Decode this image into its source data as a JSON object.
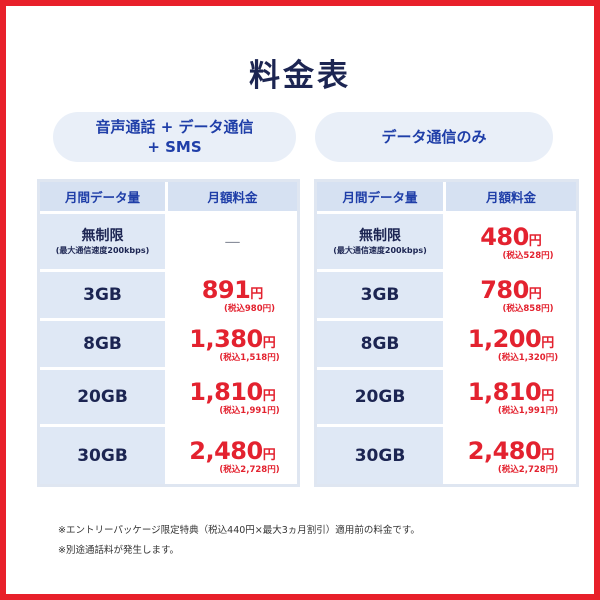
{
  "title": "料金表",
  "plans": {
    "left": {
      "line1": "音声通話 + データ通信",
      "line2": "+ SMS"
    },
    "right": {
      "line1": "データ通信のみ"
    }
  },
  "headers": {
    "data": "月間データ量",
    "price": "月額料金"
  },
  "rows_common": [
    {
      "plan": "無制限",
      "sub": "(最大通信速度200kbps)"
    },
    {
      "plan": "3GB"
    },
    {
      "plan": "8GB"
    },
    {
      "plan": "20GB"
    },
    {
      "plan": "30GB"
    }
  ],
  "left_prices": [
    {
      "dash": "—"
    },
    {
      "amount": "891",
      "yen": "円",
      "tax": "(税込980円)"
    },
    {
      "amount": "1,380",
      "yen": "円",
      "tax": "(税込1,518円)"
    },
    {
      "amount": "1,810",
      "yen": "円",
      "tax": "(税込1,991円)"
    },
    {
      "amount": "2,480",
      "yen": "円",
      "tax": "(税込2,728円)"
    }
  ],
  "right_prices": [
    {
      "amount": "480",
      "yen": "円",
      "tax": "(税込528円)"
    },
    {
      "amount": "780",
      "yen": "円",
      "tax": "(税込858円)"
    },
    {
      "amount": "1,200",
      "yen": "円",
      "tax": "(税込1,320円)"
    },
    {
      "amount": "1,810",
      "yen": "円",
      "tax": "(税込1,991円)"
    },
    {
      "amount": "2,480",
      "yen": "円",
      "tax": "(税込2,728円)"
    }
  ],
  "notes": [
    "※エントリーパッケージ限定特典（税込440円×最大3ヵ月割引）適用前の料金です。",
    "※別途通話料が発生します。"
  ],
  "colors": {
    "border": "#e8202a",
    "price": "#e3222f",
    "navy": "#1c2552",
    "blue": "#1f3ea8"
  }
}
